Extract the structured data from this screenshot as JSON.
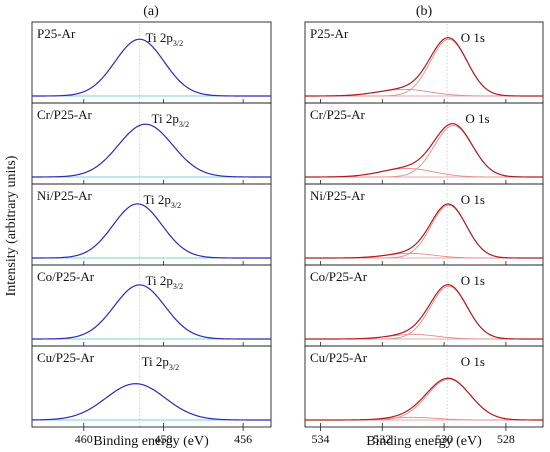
{
  "figure": {
    "ylabel": "Intensity (arbitrary units)",
    "xlabel": "Binding energy (eV)"
  },
  "chart_data": [
    {
      "type": "line",
      "panel_label": "(a)",
      "xlabel": "Binding energy (eV)",
      "ylabel": "Intensity (arbitrary units)",
      "xlim": [
        461.3,
        455.3
      ],
      "x_reversed": true,
      "xticks": [
        460,
        458,
        456
      ],
      "xtick_labels": [
        "460",
        "458",
        "456"
      ],
      "reference_line_x": 458.6,
      "peak_label_main": "Ti 2p",
      "peak_label_sub": "3/2",
      "color": "#2b2bb8",
      "baseline_color": "#7ccfd0",
      "subpanels": [
        {
          "sample": "P25-Ar",
          "center": 458.6,
          "fwhm": 1.45,
          "height": 0.86
        },
        {
          "sample": "Cr/P25-Ar",
          "center": 458.45,
          "fwhm": 1.6,
          "height": 0.8
        },
        {
          "sample": "Ni/P25-Ar",
          "center": 458.65,
          "fwhm": 1.45,
          "height": 0.82
        },
        {
          "sample": "Co/P25-Ar",
          "center": 458.6,
          "fwhm": 1.5,
          "height": 0.82
        },
        {
          "sample": "Cu/P25-Ar",
          "center": 458.7,
          "fwhm": 1.75,
          "height": 0.55
        }
      ]
    },
    {
      "type": "line",
      "panel_label": "(b)",
      "xlabel": "Binding energy (eV)",
      "xlim": [
        534.5,
        526.8
      ],
      "x_reversed": true,
      "xticks": [
        534,
        532,
        530,
        528
      ],
      "xtick_labels": [
        "534",
        "532",
        "530",
        "528"
      ],
      "reference_line_x": 529.9,
      "peak_label": "O 1s",
      "color": "#b01c1c",
      "component_color": "#e58b8b",
      "subpanels": [
        {
          "sample": "P25-Ar",
          "center": 529.85,
          "fwhm": 1.4,
          "height": 0.86,
          "shoulder_center": 531.3,
          "shoulder_fwhm": 2.0,
          "shoulder_height": 0.1
        },
        {
          "sample": "Cr/P25-Ar",
          "center": 529.7,
          "fwhm": 1.45,
          "height": 0.78,
          "shoulder_center": 531.2,
          "shoulder_fwhm": 2.0,
          "shoulder_height": 0.13
        },
        {
          "sample": "Ni/P25-Ar",
          "center": 529.85,
          "fwhm": 1.35,
          "height": 0.8,
          "shoulder_center": 531.1,
          "shoulder_fwhm": 1.8,
          "shoulder_height": 0.07
        },
        {
          "sample": "Co/P25-Ar",
          "center": 529.85,
          "fwhm": 1.4,
          "height": 0.8,
          "shoulder_center": 531.0,
          "shoulder_fwhm": 1.8,
          "shoulder_height": 0.07
        },
        {
          "sample": "Cu/P25-Ar",
          "center": 529.85,
          "fwhm": 1.65,
          "height": 0.62,
          "shoulder_center": 531.0,
          "shoulder_fwhm": 1.8,
          "shoulder_height": 0.04
        }
      ]
    }
  ]
}
